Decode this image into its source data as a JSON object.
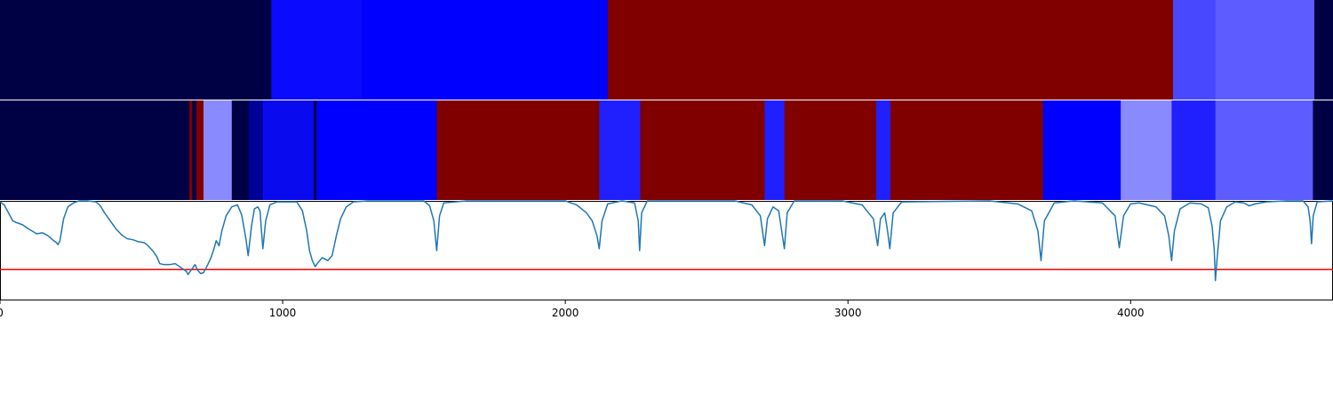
{
  "chart_data": [
    {
      "type": "heatmap",
      "xlim": [
        0,
        4716
      ],
      "segments": [
        {
          "start": 0,
          "end": 960,
          "color": "#000044"
        },
        {
          "start": 960,
          "end": 1280,
          "color": "#0a0aff"
        },
        {
          "start": 1280,
          "end": 2150,
          "color": "#0000ff"
        },
        {
          "start": 2150,
          "end": 4150,
          "color": "#800000"
        },
        {
          "start": 4150,
          "end": 4300,
          "color": "#4848ff"
        },
        {
          "start": 4300,
          "end": 4650,
          "color": "#5c5cff"
        },
        {
          "start": 4650,
          "end": 4716,
          "color": "#000044"
        }
      ]
    },
    {
      "type": "heatmap",
      "xlim": [
        0,
        4716
      ],
      "segments": [
        {
          "start": 0,
          "end": 670,
          "color": "#000044"
        },
        {
          "start": 670,
          "end": 680,
          "color": "#800000"
        },
        {
          "start": 680,
          "end": 695,
          "color": "#000044"
        },
        {
          "start": 695,
          "end": 720,
          "color": "#800000"
        },
        {
          "start": 720,
          "end": 820,
          "color": "#8a8aff"
        },
        {
          "start": 820,
          "end": 880,
          "color": "#000044"
        },
        {
          "start": 880,
          "end": 930,
          "color": "#000099"
        },
        {
          "start": 930,
          "end": 1110,
          "color": "#0a0aef"
        },
        {
          "start": 1110,
          "end": 1120,
          "color": "#000044"
        },
        {
          "start": 1120,
          "end": 1545,
          "color": "#0000ff"
        },
        {
          "start": 1545,
          "end": 2120,
          "color": "#800000"
        },
        {
          "start": 2120,
          "end": 2265,
          "color": "#2020ff"
        },
        {
          "start": 2265,
          "end": 2705,
          "color": "#800000"
        },
        {
          "start": 2705,
          "end": 2775,
          "color": "#2020ff"
        },
        {
          "start": 2775,
          "end": 3100,
          "color": "#800000"
        },
        {
          "start": 3100,
          "end": 3150,
          "color": "#2020ff"
        },
        {
          "start": 3150,
          "end": 3690,
          "color": "#800000"
        },
        {
          "start": 3690,
          "end": 3965,
          "color": "#0000ff"
        },
        {
          "start": 3965,
          "end": 4145,
          "color": "#8a8aff"
        },
        {
          "start": 4145,
          "end": 4300,
          "color": "#2020ff"
        },
        {
          "start": 4300,
          "end": 4645,
          "color": "#5c5cff"
        },
        {
          "start": 4645,
          "end": 4716,
          "color": "#000044"
        }
      ]
    },
    {
      "type": "line",
      "xlim": [
        0,
        4716
      ],
      "ylim": [
        0,
        1
      ],
      "x_ticks": [
        0,
        1000,
        2000,
        3000,
        4000
      ],
      "x_tick_labels": [
        "0",
        "1000",
        "2000",
        "3000",
        "4000"
      ],
      "line_color": "#1f77b4",
      "threshold": {
        "y": 0.31,
        "color": "#ff0000"
      },
      "series": [
        {
          "values": [
            [
              0,
              0.99
            ],
            [
              15,
              0.96
            ],
            [
              30,
              0.88
            ],
            [
              45,
              0.8
            ],
            [
              60,
              0.78
            ],
            [
              80,
              0.76
            ],
            [
              100,
              0.72
            ],
            [
              130,
              0.67
            ],
            [
              150,
              0.68
            ],
            [
              170,
              0.65
            ],
            [
              190,
              0.6
            ],
            [
              200,
              0.58
            ],
            [
              205,
              0.56
            ],
            [
              212,
              0.6
            ],
            [
              225,
              0.82
            ],
            [
              240,
              0.94
            ],
            [
              260,
              0.98
            ],
            [
              280,
              1.0
            ],
            [
              310,
              1.0
            ],
            [
              340,
              0.99
            ],
            [
              355,
              0.95
            ],
            [
              370,
              0.88
            ],
            [
              390,
              0.8
            ],
            [
              410,
              0.72
            ],
            [
              430,
              0.66
            ],
            [
              450,
              0.62
            ],
            [
              470,
              0.61
            ],
            [
              490,
              0.59
            ],
            [
              510,
              0.58
            ],
            [
              520,
              0.56
            ],
            [
              540,
              0.5
            ],
            [
              555,
              0.44
            ],
            [
              565,
              0.37
            ],
            [
              580,
              0.36
            ],
            [
              600,
              0.36
            ],
            [
              620,
              0.37
            ],
            [
              640,
              0.33
            ],
            [
              660,
              0.29
            ],
            [
              665,
              0.26
            ],
            [
              680,
              0.32
            ],
            [
              690,
              0.36
            ],
            [
              700,
              0.3
            ],
            [
              710,
              0.27
            ],
            [
              720,
              0.28
            ],
            [
              730,
              0.33
            ],
            [
              745,
              0.42
            ],
            [
              755,
              0.5
            ],
            [
              765,
              0.6
            ],
            [
              775,
              0.55
            ],
            [
              785,
              0.7
            ],
            [
              800,
              0.85
            ],
            [
              820,
              0.94
            ],
            [
              840,
              0.96
            ],
            [
              855,
              0.86
            ],
            [
              870,
              0.62
            ],
            [
              878,
              0.45
            ],
            [
              890,
              0.75
            ],
            [
              900,
              0.92
            ],
            [
              912,
              0.94
            ],
            [
              920,
              0.9
            ],
            [
              925,
              0.7
            ],
            [
              930,
              0.52
            ],
            [
              940,
              0.8
            ],
            [
              955,
              0.96
            ],
            [
              980,
              0.99
            ],
            [
              1050,
              0.99
            ],
            [
              1070,
              0.9
            ],
            [
              1085,
              0.7
            ],
            [
              1095,
              0.5
            ],
            [
              1105,
              0.4
            ],
            [
              1115,
              0.34
            ],
            [
              1125,
              0.38
            ],
            [
              1140,
              0.43
            ],
            [
              1160,
              0.4
            ],
            [
              1175,
              0.45
            ],
            [
              1190,
              0.65
            ],
            [
              1205,
              0.82
            ],
            [
              1225,
              0.94
            ],
            [
              1250,
              0.99
            ],
            [
              1300,
              1.0
            ],
            [
              1400,
              1.0
            ],
            [
              1500,
              1.0
            ],
            [
              1520,
              0.95
            ],
            [
              1535,
              0.8
            ],
            [
              1545,
              0.5
            ],
            [
              1555,
              0.85
            ],
            [
              1570,
              0.98
            ],
            [
              1650,
              1.0
            ],
            [
              1900,
              1.0
            ],
            [
              2000,
              1.0
            ],
            [
              2040,
              0.96
            ],
            [
              2075,
              0.88
            ],
            [
              2095,
              0.8
            ],
            [
              2112,
              0.65
            ],
            [
              2120,
              0.52
            ],
            [
              2130,
              0.8
            ],
            [
              2150,
              0.97
            ],
            [
              2200,
              1.0
            ],
            [
              2245,
              0.98
            ],
            [
              2258,
              0.8
            ],
            [
              2263,
              0.5
            ],
            [
              2270,
              0.88
            ],
            [
              2290,
              1.0
            ],
            [
              2600,
              1.0
            ],
            [
              2660,
              0.96
            ],
            [
              2690,
              0.85
            ],
            [
              2705,
              0.55
            ],
            [
              2715,
              0.82
            ],
            [
              2735,
              0.94
            ],
            [
              2755,
              0.9
            ],
            [
              2768,
              0.65
            ],
            [
              2775,
              0.52
            ],
            [
              2785,
              0.88
            ],
            [
              2810,
              1.0
            ],
            [
              2980,
              1.0
            ],
            [
              3050,
              0.96
            ],
            [
              3090,
              0.82
            ],
            [
              3105,
              0.55
            ],
            [
              3115,
              0.82
            ],
            [
              3130,
              0.88
            ],
            [
              3140,
              0.7
            ],
            [
              3148,
              0.52
            ],
            [
              3160,
              0.88
            ],
            [
              3190,
              0.99
            ],
            [
              3500,
              1.0
            ],
            [
              3600,
              0.97
            ],
            [
              3650,
              0.9
            ],
            [
              3672,
              0.7
            ],
            [
              3683,
              0.4
            ],
            [
              3695,
              0.8
            ],
            [
              3730,
              0.98
            ],
            [
              3800,
              1.0
            ],
            [
              3900,
              0.98
            ],
            [
              3945,
              0.85
            ],
            [
              3960,
              0.53
            ],
            [
              3975,
              0.85
            ],
            [
              4000,
              0.97
            ],
            [
              4030,
              0.98
            ],
            [
              4060,
              0.96
            ],
            [
              4090,
              0.94
            ],
            [
              4120,
              0.85
            ],
            [
              4135,
              0.65
            ],
            [
              4145,
              0.4
            ],
            [
              4155,
              0.7
            ],
            [
              4175,
              0.92
            ],
            [
              4210,
              0.98
            ],
            [
              4250,
              0.97
            ],
            [
              4275,
              0.93
            ],
            [
              4288,
              0.75
            ],
            [
              4296,
              0.5
            ],
            [
              4300,
              0.2
            ],
            [
              4306,
              0.42
            ],
            [
              4318,
              0.8
            ],
            [
              4340,
              0.94
            ],
            [
              4370,
              0.99
            ],
            [
              4400,
              0.98
            ],
            [
              4420,
              0.95
            ],
            [
              4440,
              0.97
            ],
            [
              4480,
              0.99
            ],
            [
              4550,
              1.0
            ],
            [
              4610,
              1.0
            ],
            [
              4628,
              0.94
            ],
            [
              4635,
              0.8
            ],
            [
              4640,
              0.57
            ],
            [
              4646,
              0.85
            ],
            [
              4660,
              0.99
            ],
            [
              4716,
              1.0
            ]
          ]
        }
      ]
    }
  ]
}
